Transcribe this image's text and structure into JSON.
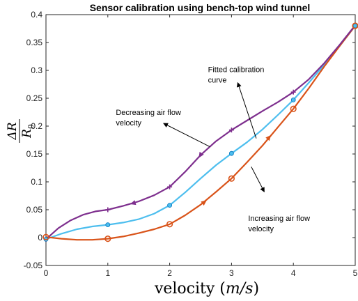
{
  "chart_data": {
    "type": "line",
    "title": "Sensor calibration using bench-top wind tunnel",
    "xlabel": "velocity (m/s)",
    "ylabel": "ΔR/R0",
    "xlim": [
      0,
      5
    ],
    "ylim": [
      -0.05,
      0.4
    ],
    "xticks": [
      0,
      1,
      2,
      3,
      4,
      5
    ],
    "yticks": [
      -0.05,
      0,
      0.05,
      0.1,
      0.15,
      0.2,
      0.25,
      0.3,
      0.35,
      0.4
    ],
    "grid": false,
    "series": [
      {
        "key": "decreasing",
        "color": "#7E2F8E",
        "marker": "plus",
        "x": [
          0,
          1,
          2,
          3,
          4,
          5
        ],
        "y": [
          -0.003,
          0.05,
          0.091,
          0.193,
          0.261,
          0.381
        ],
        "curve": [
          [
            0,
            -0.003
          ],
          [
            0.2,
            0.017
          ],
          [
            0.4,
            0.031
          ],
          [
            0.6,
            0.041
          ],
          [
            0.8,
            0.047
          ],
          [
            1,
            0.05
          ],
          [
            1.25,
            0.057
          ],
          [
            1.5,
            0.065
          ],
          [
            1.75,
            0.076
          ],
          [
            2,
            0.091
          ],
          [
            2.25,
            0.118
          ],
          [
            2.5,
            0.148
          ],
          [
            2.75,
            0.173
          ],
          [
            3,
            0.193
          ],
          [
            3.25,
            0.21
          ],
          [
            3.5,
            0.227
          ],
          [
            3.75,
            0.243
          ],
          [
            4,
            0.261
          ],
          [
            4.25,
            0.284
          ],
          [
            4.5,
            0.313
          ],
          [
            4.75,
            0.346
          ],
          [
            5,
            0.381
          ]
        ],
        "direction": "decreasing"
      },
      {
        "key": "fitted",
        "color": "#4DBEEE",
        "marker": "dot",
        "x": [
          0,
          1,
          2,
          3,
          4,
          5
        ],
        "y": [
          -0.003,
          0.023,
          0.058,
          0.151,
          0.247,
          0.38
        ],
        "curve": [
          [
            0,
            -0.003
          ],
          [
            0.25,
            0.007
          ],
          [
            0.5,
            0.015
          ],
          [
            0.75,
            0.02
          ],
          [
            1,
            0.023
          ],
          [
            1.25,
            0.027
          ],
          [
            1.5,
            0.033
          ],
          [
            1.75,
            0.043
          ],
          [
            2,
            0.058
          ],
          [
            2.25,
            0.081
          ],
          [
            2.5,
            0.106
          ],
          [
            2.75,
            0.13
          ],
          [
            3,
            0.151
          ],
          [
            3.25,
            0.171
          ],
          [
            3.5,
            0.194
          ],
          [
            3.75,
            0.22
          ],
          [
            4,
            0.247
          ],
          [
            4.25,
            0.278
          ],
          [
            4.5,
            0.31
          ],
          [
            4.75,
            0.344
          ],
          [
            5,
            0.38
          ]
        ]
      },
      {
        "key": "increasing",
        "color": "#D95319",
        "marker": "circle",
        "x": [
          0,
          1,
          2,
          3,
          4,
          5
        ],
        "y": [
          0.001,
          -0.002,
          0.024,
          0.106,
          0.231,
          0.38
        ],
        "curve": [
          [
            0,
            0.001
          ],
          [
            0.25,
            -0.002
          ],
          [
            0.5,
            -0.004
          ],
          [
            0.75,
            -0.004
          ],
          [
            1,
            -0.002
          ],
          [
            1.25,
            0.002
          ],
          [
            1.5,
            0.008
          ],
          [
            1.75,
            0.015
          ],
          [
            2,
            0.024
          ],
          [
            2.25,
            0.04
          ],
          [
            2.5,
            0.059
          ],
          [
            2.75,
            0.082
          ],
          [
            3,
            0.106
          ],
          [
            3.25,
            0.135
          ],
          [
            3.5,
            0.165
          ],
          [
            3.75,
            0.198
          ],
          [
            4,
            0.231
          ],
          [
            4.25,
            0.268
          ],
          [
            4.5,
            0.307
          ],
          [
            4.75,
            0.344
          ],
          [
            5,
            0.38
          ]
        ],
        "direction": "increasing"
      }
    ],
    "direction_arrows": [
      {
        "series": "decreasing",
        "x": 2.55,
        "y": 0.157,
        "x2": 2.47,
        "y2": 0.143
      },
      {
        "series": "decreasing",
        "x": 1.48,
        "y": 0.064,
        "x2": 1.36,
        "y2": 0.06
      },
      {
        "series": "increasing",
        "x": 2.48,
        "y": 0.057,
        "x2": 2.6,
        "y2": 0.067
      },
      {
        "series": "increasing",
        "x": 3.54,
        "y": 0.171,
        "x2": 3.64,
        "y2": 0.184
      }
    ],
    "annotations": [
      {
        "key": "fitted",
        "lines": [
          "Fitted calibration",
          "curve"
        ],
        "text_x": 2.62,
        "text_y": 0.297,
        "from": [
          3.4,
          0.178
        ],
        "to": [
          3.1,
          0.278
        ]
      },
      {
        "key": "decreasing",
        "lines": [
          "Decreasing air flow",
          "velocity"
        ],
        "text_x": 1.13,
        "text_y": 0.22,
        "from": [
          2.65,
          0.163
        ],
        "to": [
          1.9,
          0.205
        ]
      },
      {
        "key": "increasing",
        "lines": [
          "Increasing air flow",
          "velocity"
        ],
        "text_x": 3.27,
        "text_y": 0.03,
        "from": [
          3.32,
          0.127
        ],
        "to": [
          3.53,
          0.082
        ]
      }
    ]
  }
}
